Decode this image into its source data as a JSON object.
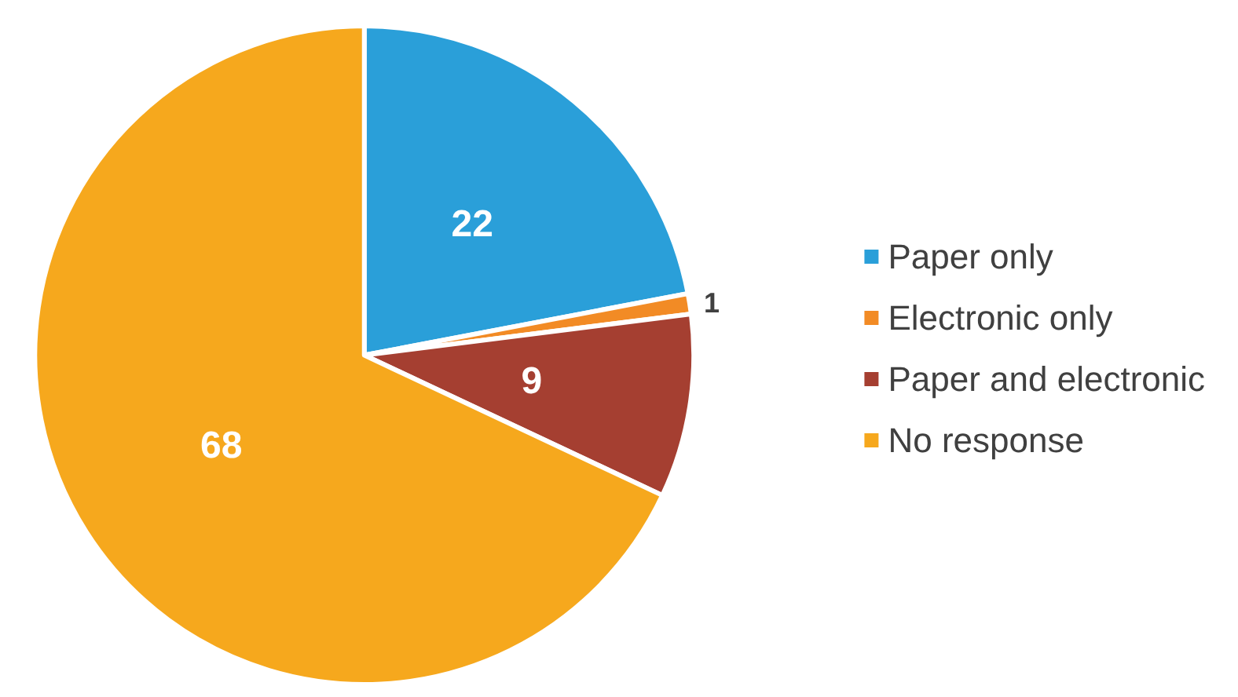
{
  "chart_data": {
    "type": "pie",
    "categories": [
      "Paper only",
      "Electronic only",
      "Paper and electronic",
      "No response"
    ],
    "values": [
      22,
      1,
      9,
      68
    ],
    "colors": [
      "#2a9fd9",
      "#f28b25",
      "#a53f31",
      "#f6a81d"
    ],
    "data_labels": true,
    "legend": "right"
  }
}
